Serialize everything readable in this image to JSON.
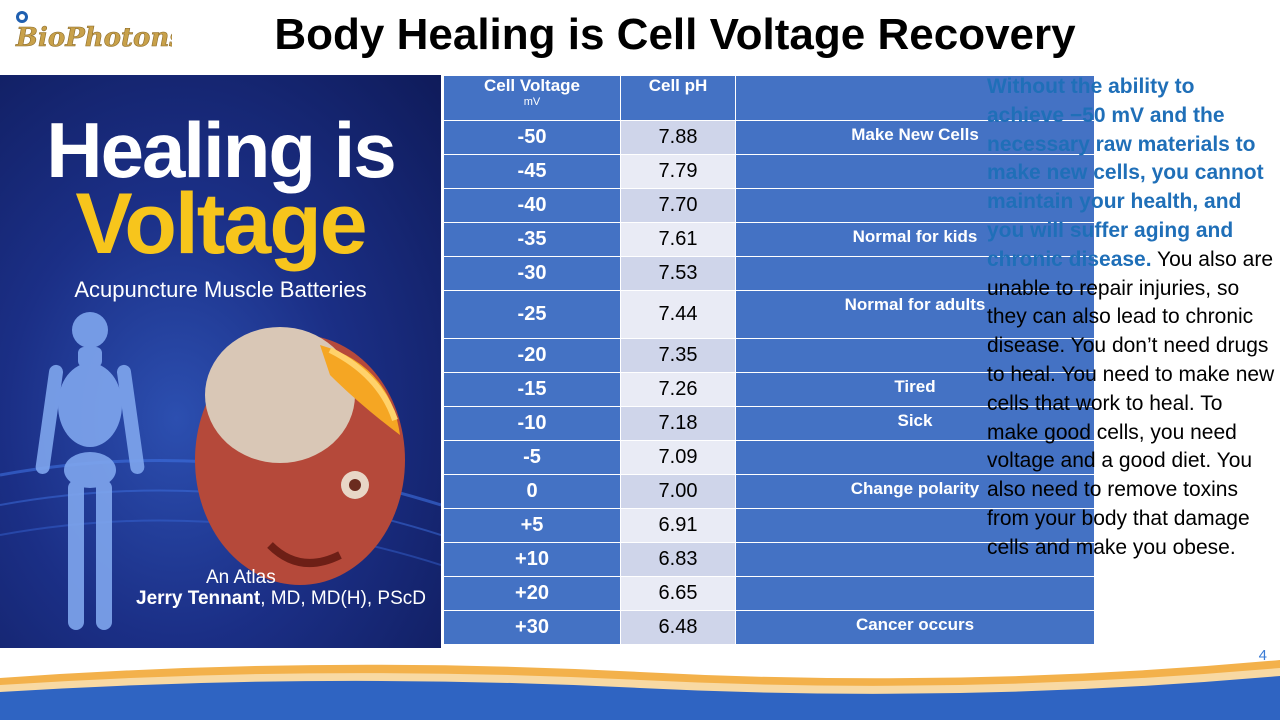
{
  "header": {
    "logo_text": "BioPhotons",
    "title": "Body Healing is Cell Voltage Recovery"
  },
  "book": {
    "title_line1": "Healing is",
    "title_line2": "Voltage",
    "subtitle": "Acupuncture Muscle Batteries",
    "atlas": "An Atlas",
    "author_name": "Jerry Tennant",
    "author_creds": ", MD, MD(H), PScD"
  },
  "table": {
    "headers": {
      "voltage": "Cell Voltage",
      "voltage_unit": "mV",
      "ph": "Cell pH",
      "note": ""
    },
    "rows": [
      {
        "voltage": "-50",
        "ph": "7.88",
        "note": "Make New Cells"
      },
      {
        "voltage": "-45",
        "ph": "7.79",
        "note": ""
      },
      {
        "voltage": "-40",
        "ph": "7.70",
        "note": ""
      },
      {
        "voltage": "-35",
        "ph": "7.61",
        "note": "Normal for kids"
      },
      {
        "voltage": "-30",
        "ph": "7.53",
        "note": ""
      },
      {
        "voltage": "-25",
        "ph": "7.44",
        "note": "Normal for adults"
      },
      {
        "voltage": "-20",
        "ph": "7.35",
        "note": ""
      },
      {
        "voltage": "-15",
        "ph": "7.26",
        "note": "Tired"
      },
      {
        "voltage": "-10",
        "ph": "7.18",
        "note": "Sick"
      },
      {
        "voltage": "-5",
        "ph": "7.09",
        "note": ""
      },
      {
        "voltage": "0",
        "ph": "7.00",
        "note": "Change polarity"
      },
      {
        "voltage": "+5",
        "ph": "6.91",
        "note": ""
      },
      {
        "voltage": "+10",
        "ph": "6.83",
        "note": ""
      },
      {
        "voltage": "+20",
        "ph": "6.65",
        "note": ""
      },
      {
        "voltage": "+30",
        "ph": "6.48",
        "note": "Cancer occurs"
      }
    ]
  },
  "sidebar": {
    "highlight": "Without the ability to achieve −50 mV and the necessary raw materials to make new cells, you cannot maintain your health, and you will suffer aging and chronic disease.",
    "body": " You also are unable to repair injuries, so they can also lead to chronic disease. You don’t need drugs to heal. You need to make new cells that work to heal. To make good cells, you need voltage and a good diet. You also need to remove toxins from your body that damage cells and make you obese."
  },
  "footer": {
    "page_number": "4"
  },
  "colors": {
    "table_blue": "#4472c4",
    "ph_light": "#cfd5ea",
    "highlight_text": "#1f6fb8",
    "book_gold": "#f7c51c"
  }
}
